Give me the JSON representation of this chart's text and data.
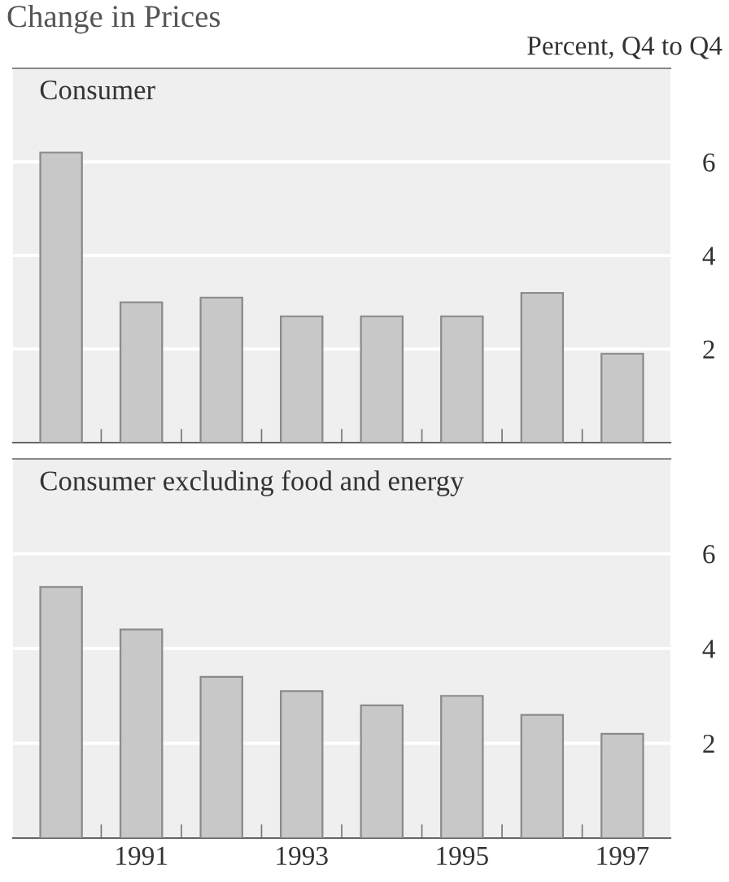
{
  "chart_data": [
    {
      "type": "bar",
      "title": "Change in Prices",
      "subtitle": "Percent, Q4 to Q4",
      "annotations": [
        "Consumer"
      ],
      "categories": [
        null,
        "1991",
        null,
        "1993",
        null,
        "1995",
        null,
        "1997"
      ],
      "values": [
        6.2,
        3.0,
        3.1,
        2.7,
        2.7,
        2.7,
        3.2,
        1.9
      ],
      "color": "#c8c8c8",
      "ylim": [
        0,
        8
      ],
      "yticks": [
        2,
        4,
        6
      ],
      "grid": "y",
      "tick_labels": "y"
    },
    {
      "type": "bar",
      "annotations": [
        "Consumer excluding food and energy"
      ],
      "categories": [
        null,
        "1991",
        null,
        "1993",
        null,
        "1995",
        null,
        "1997"
      ],
      "values": [
        5.3,
        4.4,
        3.4,
        3.1,
        2.8,
        3.0,
        2.6,
        2.2
      ],
      "color": "#c8c8c8",
      "ylim": [
        0,
        8
      ],
      "yticks": [
        2,
        4,
        6
      ],
      "grid": "y"
    }
  ]
}
